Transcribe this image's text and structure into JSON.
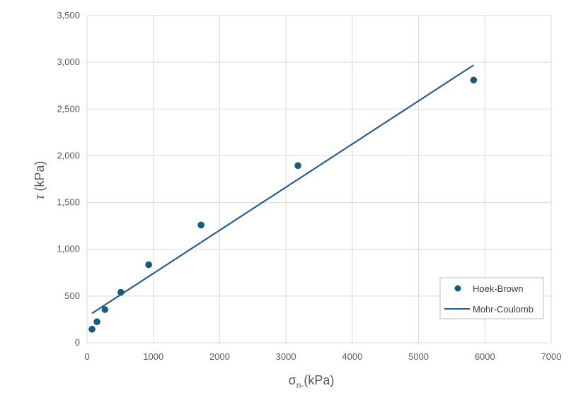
{
  "chart_data": {
    "type": "scatter",
    "xlim": [
      0,
      7000
    ],
    "ylim": [
      0,
      3500
    ],
    "x_ticks": [
      "0",
      "1000",
      "2000",
      "3000",
      "4000",
      "5000",
      "6000",
      "7000"
    ],
    "y_ticks": [
      "0",
      "500",
      "1,000",
      "1,500",
      "2,000",
      "2,500",
      "3,000",
      "3,500"
    ],
    "x_tick_values": [
      0,
      1000,
      2000,
      3000,
      4000,
      5000,
      6000,
      7000
    ],
    "y_tick_values": [
      0,
      500,
      1000,
      1500,
      2000,
      2500,
      3000,
      3500
    ],
    "grid": true,
    "legend_position": "bottom-right",
    "xlabel": {
      "symbol": "σ",
      "subscript": "n",
      "suffix": "(kPa)"
    },
    "ylabel": {
      "symbol": "τ",
      "suffix": "(kPa)"
    },
    "series": [
      {
        "name": "Hoek-Brown",
        "kind": "scatter",
        "color": "#1b5a7a",
        "points": [
          {
            "x": 75,
            "y": 145
          },
          {
            "x": 150,
            "y": 225
          },
          {
            "x": 270,
            "y": 355
          },
          {
            "x": 510,
            "y": 540
          },
          {
            "x": 930,
            "y": 835
          },
          {
            "x": 1720,
            "y": 1260
          },
          {
            "x": 3180,
            "y": 1895
          },
          {
            "x": 5830,
            "y": 2810
          }
        ]
      },
      {
        "name": "Mohr-Coulomb",
        "kind": "line",
        "color": "#2b5f8e",
        "points": [
          {
            "x": 75,
            "y": 315
          },
          {
            "x": 5830,
            "y": 2970
          }
        ]
      }
    ]
  }
}
